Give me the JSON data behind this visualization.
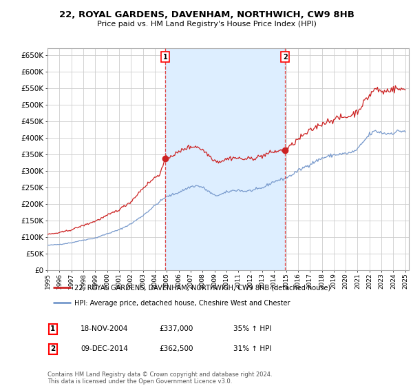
{
  "title": "22, ROYAL GARDENS, DAVENHAM, NORTHWICH, CW9 8HB",
  "subtitle": "Price paid vs. HM Land Registry's House Price Index (HPI)",
  "ytick_values": [
    0,
    50000,
    100000,
    150000,
    200000,
    250000,
    300000,
    350000,
    400000,
    450000,
    500000,
    550000,
    600000,
    650000
  ],
  "ylim": [
    0,
    670000
  ],
  "xlim_start": 1995.0,
  "xlim_end": 2025.3,
  "background_color": "#ffffff",
  "plot_bg_color": "#ffffff",
  "grid_color": "#cccccc",
  "sale1_x": 2004.88,
  "sale1_y": 337000,
  "sale1_label": "1",
  "sale2_x": 2014.92,
  "sale2_y": 362500,
  "sale2_label": "2",
  "vline_color": "#dd4444",
  "red_line_color": "#cc2222",
  "blue_line_color": "#7799cc",
  "span_color": "#ddeeff",
  "legend_label_red": "22, ROYAL GARDENS, DAVENHAM, NORTHWICH, CW9 8HB (detached house)",
  "legend_label_blue": "HPI: Average price, detached house, Cheshire West and Chester",
  "annotation1_date": "18-NOV-2004",
  "annotation1_price": "£337,000",
  "annotation1_hpi": "35% ↑ HPI",
  "annotation2_date": "09-DEC-2014",
  "annotation2_price": "£362,500",
  "annotation2_hpi": "31% ↑ HPI",
  "footer": "Contains HM Land Registry data © Crown copyright and database right 2024.\nThis data is licensed under the Open Government Licence v3.0."
}
